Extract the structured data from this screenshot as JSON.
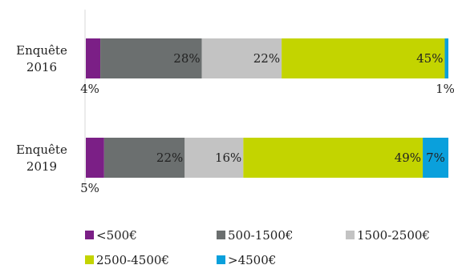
{
  "chart_data": {
    "type": "bar",
    "orientation": "horizontal",
    "stacked": true,
    "categories": [
      "Enquête 2016",
      "Enquête 2019"
    ],
    "category_lines": [
      [
        "Enquête",
        "2016"
      ],
      [
        "Enquête",
        "2019"
      ]
    ],
    "series": [
      {
        "name": "<500€",
        "color": "#7b1f86",
        "values": [
          4,
          5
        ],
        "labels": [
          "4%",
          "5%"
        ]
      },
      {
        "name": "500-1500€",
        "color": "#6b6f6f",
        "values": [
          28,
          22
        ],
        "labels": [
          "28%",
          "22%"
        ]
      },
      {
        "name": "1500-2500€",
        "color": "#c3c3c3",
        "values": [
          22,
          16
        ],
        "labels": [
          "22%",
          "16%"
        ]
      },
      {
        "name": "2500-4500€",
        "color": "#c3d400",
        "values": [
          45,
          49
        ],
        "labels": [
          "45%",
          "49%"
        ]
      },
      {
        "name": ">4500€",
        "color": "#0aa0dc",
        "values": [
          1,
          7
        ],
        "labels": [
          "1%",
          "7%"
        ]
      }
    ],
    "xlim": [
      0,
      100
    ],
    "grid": false,
    "legend": "bottom"
  }
}
